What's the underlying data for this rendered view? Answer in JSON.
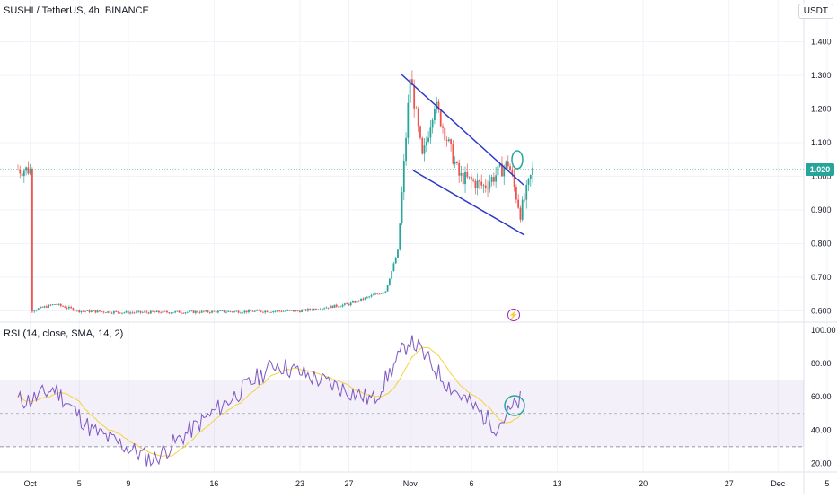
{
  "header": {
    "symbol_line": "SUSHI / TetherUS, 4h, BINANCE",
    "currency": "USDT"
  },
  "price_axis": {
    "ticks": [
      "1.400",
      "1.300",
      "1.200",
      "1.100",
      "1.000",
      "0.900",
      "0.800",
      "0.700",
      "0.600"
    ],
    "current_price": "1.020",
    "current_price_color": "#26a69a"
  },
  "rsi": {
    "label": "RSI (14, close, SMA, 14, 2)",
    "ticks": [
      "100.00",
      "80.00",
      "60.00",
      "40.00",
      "20.00"
    ],
    "band_color": "#7e57c2",
    "rsi_line_color": "#7e57c2",
    "sma_line_color": "#f5d23d"
  },
  "time_axis": {
    "labels": [
      "Oct",
      "5",
      "9",
      "16",
      "23",
      "27",
      "Nov",
      "6",
      "13",
      "20",
      "27",
      "Dec",
      "5"
    ]
  },
  "colors": {
    "up": "#26a69a",
    "down": "#ef5350",
    "trendline": "#2a39c9",
    "annotation": "#26a69a"
  },
  "icons": {
    "bolt": "lightning-icon"
  },
  "chart_data": {
    "type": "candlestick",
    "title": "SUSHI / TetherUS, 4h, BINANCE",
    "x_range": [
      "Sep 30",
      "Dec 5"
    ],
    "ylim": [
      0.58,
      1.45
    ],
    "approx_close_path": [
      {
        "date": "Oct 1",
        "close": 0.6
      },
      {
        "date": "Oct 3",
        "close": 0.62
      },
      {
        "date": "Oct 5",
        "close": 0.6
      },
      {
        "date": "Oct 9",
        "close": 0.595
      },
      {
        "date": "Oct 23",
        "close": 0.6
      },
      {
        "date": "Oct 27",
        "close": 0.62
      },
      {
        "date": "Oct 30",
        "close": 0.66
      },
      {
        "date": "Oct 31",
        "close": 0.78
      },
      {
        "date": "Nov 1",
        "close": 1.3
      },
      {
        "date": "Nov 2",
        "close": 1.05
      },
      {
        "date": "Nov 3",
        "close": 1.22
      },
      {
        "date": "Nov 5",
        "close": 1.0
      },
      {
        "date": "Nov 7",
        "close": 0.97
      },
      {
        "date": "Nov 9",
        "close": 1.04
      },
      {
        "date": "Nov 10",
        "close": 0.89
      },
      {
        "date": "Nov 11",
        "close": 1.02
      }
    ],
    "rsi_approx": [
      {
        "date": "Oct 1",
        "value": 58
      },
      {
        "date": "Oct 3",
        "value": 65
      },
      {
        "date": "Oct 6",
        "value": 40
      },
      {
        "date": "Oct 11",
        "value": 22
      },
      {
        "date": "Oct 21",
        "value": 80
      },
      {
        "date": "Oct 29",
        "value": 58
      },
      {
        "date": "Nov 1",
        "value": 95
      },
      {
        "date": "Nov 4",
        "value": 68
      },
      {
        "date": "Nov 8",
        "value": 42
      },
      {
        "date": "Nov 10",
        "value": 58
      }
    ],
    "rsi_bands": [
      30,
      70
    ]
  }
}
